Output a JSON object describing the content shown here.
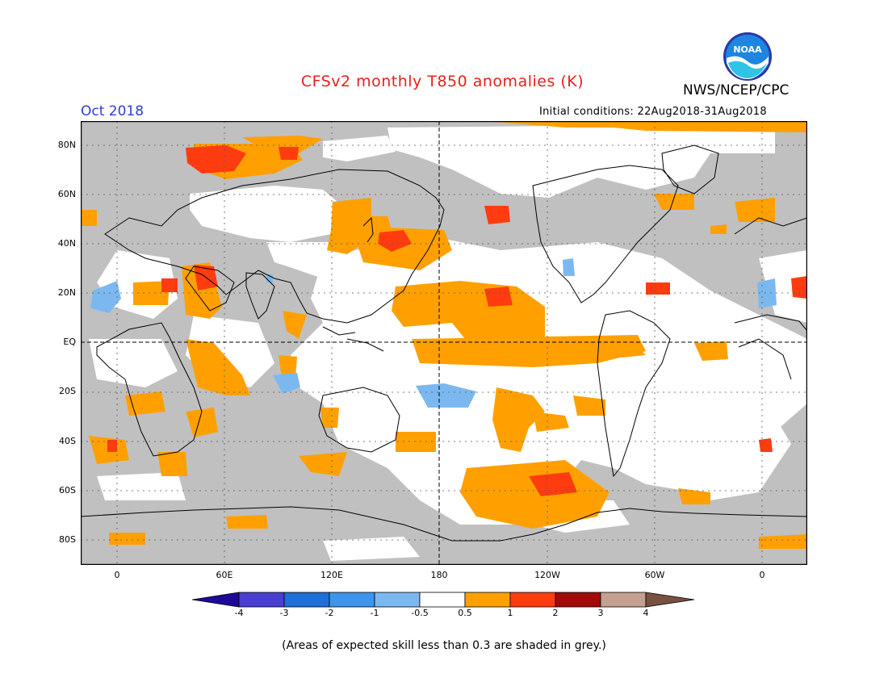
{
  "header": {
    "title": "CFSv2 monthly T850 anomalies (K)",
    "month": "Oct 2018",
    "agency": "NWS/NCEP/CPC",
    "logo_text": "NOAA",
    "initial_conditions": "Initial conditions: 22Aug2018-31Aug2018"
  },
  "map": {
    "lat_labels": [
      "80N",
      "60N",
      "40N",
      "20N",
      "EQ",
      "20S",
      "40S",
      "60S",
      "80S"
    ],
    "lon_labels": [
      "0",
      "60E",
      "120E",
      "180",
      "120W",
      "60W",
      "0"
    ],
    "colors": {
      "skill_grey": "#c0c0c0",
      "neutral": "#ffffff",
      "warm_05_1": "#ffa000",
      "warm_1_2": "#ff3c10",
      "cool_05_1": "#7cb8f0",
      "coast": "#000000"
    }
  },
  "colorbar": {
    "labels": [
      "-4",
      "-3",
      "-2",
      "-1",
      "-0.5",
      "0.5",
      "1",
      "2",
      "3",
      "4"
    ],
    "colors": [
      "#1d0a9a",
      "#4a3fd0",
      "#1e6fd6",
      "#3d94ea",
      "#7cb8f0",
      "#ffffff",
      "#ffa000",
      "#ff3c10",
      "#a10a0a",
      "#c4a090",
      "#7a5040"
    ]
  },
  "footnote": "(Areas of expected skill less than 0.3 are shaded in grey.)"
}
